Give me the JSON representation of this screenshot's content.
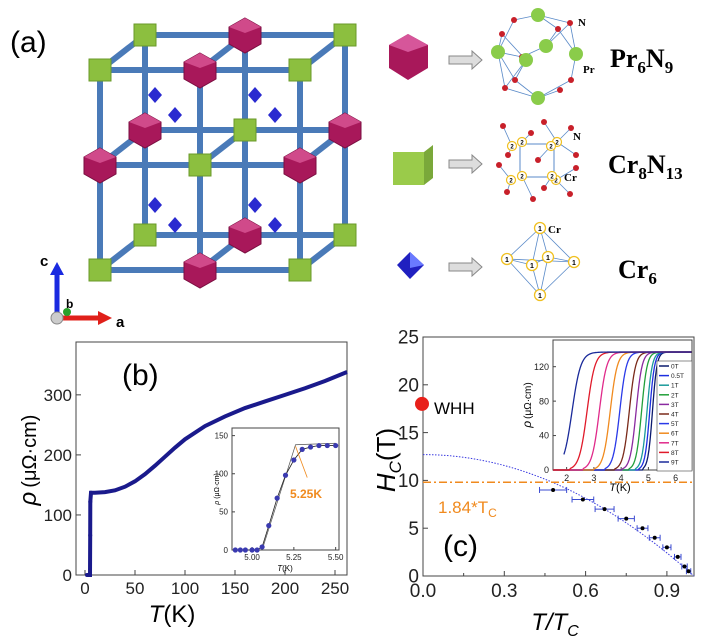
{
  "panel_a": {
    "label": "(a)",
    "axes": {
      "c": "c",
      "b": "b",
      "a": "a"
    },
    "clusters": [
      {
        "name": "Pr6N9",
        "formula": [
          "Pr",
          "6",
          "N",
          "9"
        ],
        "atom_labels": [
          "N",
          "Pr"
        ],
        "color": "#a8185a"
      },
      {
        "name": "Cr8N13",
        "formula": [
          "Cr",
          "8",
          "N",
          "13"
        ],
        "atom_labels": [
          "N",
          "Cr"
        ],
        "site_number": "2",
        "color": "#8cbf3f"
      },
      {
        "name": "Cr6",
        "formula": [
          "Cr",
          "6"
        ],
        "atom_labels": [
          "Cr"
        ],
        "site_number": "1",
        "color": "#2a2ad0"
      }
    ]
  },
  "chart_data": [
    {
      "type": "line",
      "panel": "(b)",
      "xlabel_italic": "T",
      "xlabel_unit": "(K)",
      "ylabel_symbol": "ρ",
      "ylabel_unit": "(μΩ·cm)",
      "xlim": [
        -9,
        262
      ],
      "ylim": [
        0,
        388
      ],
      "xticks": [
        0,
        50,
        100,
        150,
        200,
        250
      ],
      "yticks": [
        0,
        100,
        200,
        300
      ],
      "series": [
        {
          "name": "rho(T)",
          "color": "#1a1a8c",
          "x": [
            2,
            5,
            5.2,
            5.3,
            6,
            10,
            20,
            30,
            40,
            50,
            60,
            70,
            80,
            90,
            100,
            120,
            140,
            160,
            180,
            200,
            220,
            240,
            262
          ],
          "y": [
            0,
            0,
            66,
            122,
            137,
            137,
            138,
            141,
            147,
            156,
            168,
            182,
            197,
            212,
            226,
            248,
            264,
            278,
            289,
            300,
            311,
            323,
            338
          ]
        }
      ],
      "inset": {
        "xlabel_italic": "T",
        "xlabel_unit": "(K)",
        "ylabel_symbol": "ρ",
        "ylabel_unit": "(μΩ·cm)",
        "xlim": [
          4.88,
          5.52
        ],
        "ylim": [
          0,
          160
        ],
        "xticks": [
          "5.00",
          "5.25",
          "5.50"
        ],
        "yticks": [
          0,
          50,
          100,
          150
        ],
        "x": [
          4.9,
          4.93,
          4.96,
          5.0,
          5.03,
          5.06,
          5.1,
          5.15,
          5.2,
          5.25,
          5.3,
          5.35,
          5.4,
          5.45,
          5.5
        ],
        "y": [
          0,
          0,
          0,
          0,
          0,
          4,
          32,
          68,
          98,
          118,
          132,
          135,
          137,
          137,
          137
        ],
        "annotation": "5.25K",
        "annotation_color": "#f08a1e"
      }
    },
    {
      "type": "scatter",
      "panel": "(c)",
      "xlabel": "T/T",
      "xlabel_sub": "C",
      "ylabel": "H",
      "ylabel_sub": "C",
      "ylabel_unit": "(T)",
      "xlim": [
        0,
        1.0
      ],
      "ylim": [
        0,
        25
      ],
      "xticks": [
        "0.0",
        "0.3",
        "0.6",
        "0.9"
      ],
      "yticks": [
        0,
        5,
        10,
        15,
        20,
        25
      ],
      "points": {
        "x": [
          0.48,
          0.59,
          0.67,
          0.75,
          0.81,
          0.855,
          0.9,
          0.94,
          0.965,
          0.98
        ],
        "y": [
          9,
          8,
          7,
          6,
          5,
          4,
          3,
          2,
          1,
          0.5
        ],
        "xerr": [
          0.05,
          0.04,
          0.035,
          0.03,
          0.02,
          0.02,
          0.015,
          0.012,
          0.01,
          0.008
        ]
      },
      "whh": {
        "label": "WHH",
        "x": 0,
        "y": 18,
        "color": "#e8201a"
      },
      "pauli_limit": {
        "label": "1.84*T",
        "label_sub": "C",
        "y": 9.8,
        "color": "#f08a1e"
      },
      "fit_curve": {
        "color": "#3a3ae0",
        "H0": 12.7
      },
      "inset": {
        "xlabel_italic": "T",
        "xlabel_unit": "(K)",
        "ylabel_symbol": "ρ",
        "ylabel_unit": "(μΩ·cm)",
        "xlim": [
          1.5,
          6.6
        ],
        "ylim": [
          0,
          151
        ],
        "xticks": [
          2,
          3,
          4,
          5,
          6
        ],
        "yticks": [
          0,
          40,
          80,
          120
        ],
        "series": [
          {
            "name": "0T",
            "color": "#0b1a6e",
            "tc": 5.15
          },
          {
            "name": "0.5T",
            "color": "#1c2ee0",
            "tc": 5.05
          },
          {
            "name": "1T",
            "color": "#1a9a9a",
            "tc": 4.95
          },
          {
            "name": "2T",
            "color": "#22a03a",
            "tc": 4.75
          },
          {
            "name": "3T",
            "color": "#8a2aa0",
            "tc": 4.55
          },
          {
            "name": "4T",
            "color": "#7a2a1a",
            "tc": 4.3
          },
          {
            "name": "5T",
            "color": "#2a3ae8",
            "tc": 3.95
          },
          {
            "name": "6T",
            "color": "#f08a1e",
            "tc": 3.6
          },
          {
            "name": "7T",
            "color": "#e02a8a",
            "tc": 3.2
          },
          {
            "name": "8T",
            "color": "#e01a2a",
            "tc": 2.75
          },
          {
            "name": "9T",
            "color": "#1a2a9a",
            "tc": 2.2
          }
        ]
      }
    }
  ]
}
